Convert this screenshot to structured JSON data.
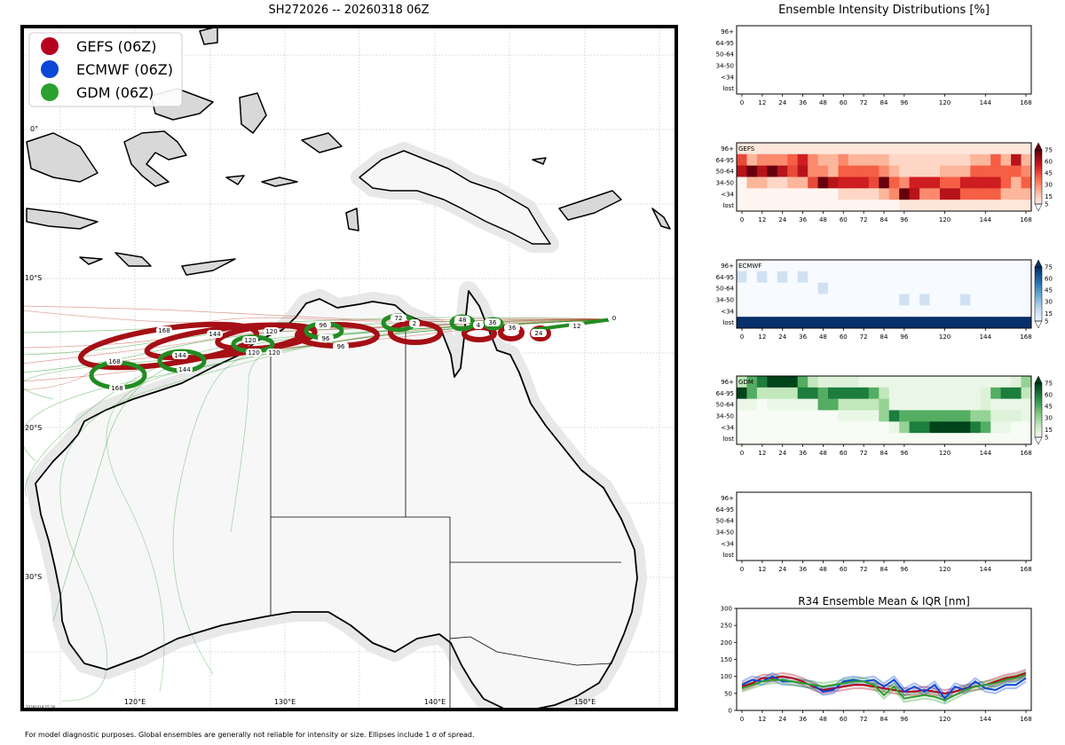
{
  "map": {
    "title": "SH272026 -- 20260318 06Z",
    "footnote": "For model diagnostic purposes. Global ensembles are generally not reliable for intensity or size. Ellipses include 1 σ of spread.",
    "stamp": "20260318 15:26",
    "lat_labels": [
      "0°",
      "10°S",
      "20°S",
      "30°S"
    ],
    "lon_labels": [
      "120°E",
      "130°E",
      "140°E",
      "150°E"
    ],
    "legend": [
      {
        "label": "GEFS (06Z)",
        "color": "#b5001e"
      },
      {
        "label": "ECMWF (06Z)",
        "color": "#0a47d6"
      },
      {
        "label": "GDM (06Z)",
        "color": "#2ca02c"
      }
    ],
    "gefs_ellipse_hours": [
      "12",
      "24",
      "36",
      "48",
      "72",
      "96",
      "120",
      "120",
      "144",
      "168"
    ],
    "gdm_ellipse_hours": [
      "0",
      "12",
      "36",
      "48",
      "72",
      "96",
      "120",
      "120",
      "144",
      "168"
    ],
    "extra_hours": [
      "96",
      "120",
      "2",
      "4",
      "96"
    ]
  },
  "intensity": {
    "title": "Ensemble Intensity Distributions [%]",
    "rows": [
      "96+",
      "64-95",
      "50-64",
      "34-50",
      "<34",
      "lost"
    ],
    "xticks": [
      "0",
      "12",
      "24",
      "36",
      "48",
      "60",
      "72",
      "84",
      "96",
      "120",
      "144",
      "168"
    ],
    "colorbar_ticks": [
      "75",
      "60",
      "45",
      "30",
      "15",
      "5"
    ],
    "panels": [
      {
        "label": "",
        "empty": true
      },
      {
        "label": "GEFS",
        "cmap": "red"
      },
      {
        "label": "ECMWF",
        "cmap": "blue"
      },
      {
        "label": "GDM",
        "cmap": "green"
      },
      {
        "label": "",
        "empty": true
      }
    ]
  },
  "chart_data": [
    {
      "type": "heatmap",
      "title": "GEFS",
      "x": [
        0,
        6,
        12,
        18,
        24,
        30,
        36,
        42,
        48,
        54,
        60,
        66,
        72,
        78,
        84,
        90,
        96,
        102,
        108,
        114,
        120,
        126,
        132,
        138,
        144,
        150,
        156,
        162,
        168
      ],
      "rows": [
        "96+",
        "64-95",
        "50-64",
        "34-50",
        "<34",
        "lost"
      ],
      "values": [
        [
          5,
          5,
          5,
          5,
          5,
          5,
          5,
          5,
          5,
          5,
          5,
          5,
          5,
          5,
          5,
          5,
          5,
          5,
          5,
          5,
          5,
          5,
          5,
          5,
          5,
          5,
          5,
          5,
          5
        ],
        [
          45,
          20,
          30,
          30,
          30,
          40,
          55,
          30,
          20,
          20,
          30,
          20,
          20,
          20,
          20,
          10,
          10,
          10,
          10,
          10,
          10,
          10,
          10,
          20,
          20,
          40,
          20,
          60,
          20
        ],
        [
          60,
          75,
          60,
          75,
          60,
          45,
          60,
          30,
          30,
          20,
          40,
          40,
          40,
          40,
          30,
          20,
          10,
          10,
          10,
          10,
          20,
          20,
          20,
          40,
          40,
          40,
          40,
          40,
          30
        ],
        [
          0,
          20,
          20,
          10,
          10,
          20,
          20,
          45,
          75,
          60,
          55,
          55,
          55,
          45,
          75,
          40,
          30,
          55,
          55,
          55,
          40,
          40,
          55,
          55,
          55,
          55,
          40,
          20,
          40
        ],
        [
          0,
          0,
          0,
          0,
          0,
          0,
          0,
          0,
          0,
          0,
          10,
          10,
          10,
          10,
          20,
          30,
          75,
          60,
          30,
          30,
          60,
          60,
          40,
          40,
          40,
          40,
          20,
          20,
          20
        ],
        [
          0,
          0,
          0,
          0,
          0,
          0,
          0,
          0,
          0,
          0,
          0,
          0,
          0,
          0,
          0,
          0,
          5,
          5,
          5,
          5,
          5,
          5,
          5,
          5,
          5,
          5,
          5,
          5,
          5
        ]
      ],
      "cbar_range": [
        5,
        75
      ]
    },
    {
      "type": "heatmap",
      "title": "ECMWF",
      "x": [
        0,
        6,
        12,
        18,
        24,
        30,
        36,
        42,
        48,
        54,
        60,
        66,
        72,
        78,
        84,
        90,
        96,
        102,
        108,
        114,
        120,
        126,
        132,
        138,
        144,
        150,
        156,
        162,
        168
      ],
      "rows": [
        "96+",
        "64-95",
        "50-64",
        "34-50",
        "<34",
        "lost"
      ],
      "values": [
        [
          0,
          0,
          0,
          0,
          0,
          0,
          0,
          0,
          0,
          0,
          0,
          0,
          0,
          0,
          0,
          0,
          0,
          0,
          0,
          0,
          0,
          0,
          0,
          0,
          0,
          0,
          0,
          0,
          0
        ],
        [
          15,
          0,
          15,
          0,
          15,
          0,
          15,
          0,
          0,
          0,
          0,
          0,
          0,
          0,
          0,
          0,
          0,
          0,
          0,
          0,
          0,
          0,
          0,
          0,
          0,
          0,
          0,
          0,
          0
        ],
        [
          0,
          0,
          0,
          0,
          0,
          0,
          0,
          0,
          15,
          0,
          0,
          0,
          0,
          0,
          0,
          0,
          0,
          0,
          0,
          0,
          0,
          0,
          0,
          0,
          0,
          0,
          0,
          0,
          0
        ],
        [
          0,
          0,
          0,
          0,
          0,
          0,
          0,
          0,
          0,
          0,
          0,
          0,
          0,
          0,
          0,
          0,
          15,
          0,
          15,
          0,
          0,
          0,
          15,
          0,
          0,
          0,
          0,
          0,
          0
        ],
        [
          0,
          0,
          0,
          0,
          0,
          0,
          0,
          0,
          0,
          0,
          0,
          0,
          0,
          0,
          0,
          0,
          0,
          0,
          0,
          0,
          0,
          0,
          0,
          0,
          0,
          0,
          0,
          0,
          0
        ],
        [
          100,
          100,
          100,
          100,
          100,
          100,
          100,
          100,
          100,
          100,
          100,
          100,
          100,
          100,
          100,
          100,
          100,
          100,
          100,
          100,
          100,
          100,
          100,
          100,
          100,
          100,
          100,
          100,
          100
        ]
      ],
      "cbar_range": [
        5,
        75
      ]
    },
    {
      "type": "heatmap",
      "title": "GDM",
      "x": [
        0,
        6,
        12,
        18,
        24,
        30,
        36,
        42,
        48,
        54,
        60,
        66,
        72,
        78,
        84,
        90,
        96,
        102,
        108,
        114,
        120,
        126,
        132,
        138,
        144,
        150,
        156,
        162,
        168
      ],
      "rows": [
        "96+",
        "64-95",
        "50-64",
        "34-50",
        "<34",
        "lost"
      ],
      "values": [
        [
          20,
          45,
          60,
          75,
          75,
          75,
          45,
          20,
          10,
          10,
          10,
          10,
          5,
          5,
          5,
          5,
          5,
          5,
          5,
          5,
          5,
          5,
          5,
          5,
          5,
          5,
          5,
          10,
          30
        ],
        [
          75,
          45,
          20,
          20,
          20,
          20,
          60,
          60,
          45,
          60,
          60,
          60,
          60,
          45,
          20,
          5,
          5,
          5,
          5,
          5,
          5,
          5,
          5,
          5,
          10,
          45,
          60,
          60,
          20
        ],
        [
          5,
          5,
          0,
          5,
          5,
          5,
          5,
          5,
          45,
          45,
          20,
          20,
          20,
          20,
          30,
          5,
          5,
          5,
          5,
          5,
          5,
          5,
          5,
          5,
          10,
          5,
          5,
          5,
          5
        ],
        [
          0,
          0,
          0,
          0,
          0,
          0,
          0,
          0,
          0,
          0,
          5,
          5,
          5,
          5,
          30,
          60,
          45,
          45,
          45,
          45,
          45,
          45,
          45,
          30,
          30,
          10,
          10,
          10,
          5
        ],
        [
          0,
          0,
          0,
          0,
          0,
          0,
          0,
          0,
          0,
          0,
          0,
          0,
          0,
          0,
          0,
          5,
          30,
          60,
          60,
          75,
          75,
          75,
          75,
          60,
          45,
          5,
          5,
          0,
          0
        ],
        [
          0,
          0,
          0,
          0,
          0,
          0,
          0,
          0,
          0,
          0,
          0,
          0,
          0,
          0,
          0,
          0,
          0,
          0,
          0,
          0,
          0,
          0,
          0,
          0,
          0,
          0,
          0,
          0,
          0
        ]
      ],
      "cbar_range": [
        5,
        75
      ]
    },
    {
      "type": "line",
      "title": "R34 Ensemble Mean & IQR [nm]",
      "xticks": [
        "0",
        "12",
        "24",
        "36",
        "48",
        "60",
        "72",
        "84",
        "96",
        "120",
        "144",
        "168"
      ],
      "yticks": [
        "0",
        "50",
        "100",
        "150",
        "200",
        "250",
        "300"
      ],
      "ylim": [
        0,
        300
      ],
      "x": [
        0,
        6,
        12,
        18,
        24,
        30,
        36,
        42,
        48,
        54,
        60,
        66,
        72,
        78,
        84,
        90,
        96,
        102,
        108,
        114,
        120,
        126,
        132,
        138,
        144,
        150,
        156,
        162,
        168
      ],
      "series": [
        {
          "name": "GEFS",
          "color": "#b5001e",
          "values": [
            70,
            80,
            95,
            95,
            100,
            95,
            85,
            70,
            60,
            65,
            70,
            75,
            75,
            70,
            65,
            60,
            55,
            55,
            60,
            55,
            50,
            55,
            65,
            70,
            75,
            85,
            95,
            100,
            110
          ]
        },
        {
          "name": "ECMWF",
          "color": "#0a47d6",
          "values": [
            75,
            90,
            85,
            100,
            85,
            85,
            80,
            75,
            55,
            60,
            85,
            90,
            85,
            90,
            70,
            90,
            55,
            70,
            55,
            75,
            35,
            70,
            60,
            85,
            65,
            60,
            75,
            75,
            95
          ]
        },
        {
          "name": "GDM",
          "color": "#2ca02c",
          "values": [
            65,
            75,
            85,
            90,
            90,
            85,
            80,
            75,
            70,
            75,
            80,
            85,
            85,
            75,
            45,
            70,
            35,
            40,
            45,
            40,
            30,
            45,
            60,
            70,
            75,
            80,
            90,
            95,
            105
          ]
        }
      ]
    }
  ]
}
